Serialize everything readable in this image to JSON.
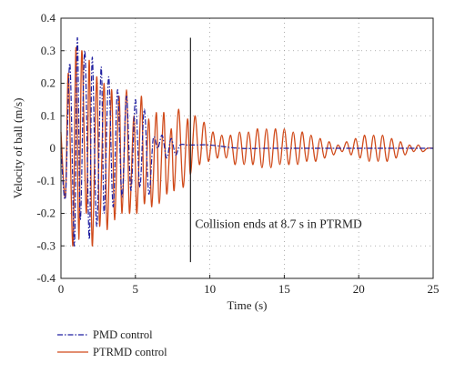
{
  "chart_data": {
    "type": "line",
    "title": "",
    "xlabel": "Time (s)",
    "ylabel": "Velocity of ball (m/s)",
    "xlim": [
      0,
      25
    ],
    "ylim": [
      -0.4,
      0.4
    ],
    "xticks": [
      0,
      5,
      10,
      15,
      20,
      25
    ],
    "yticks": [
      -0.4,
      -0.3,
      -0.2,
      -0.1,
      0,
      0.1,
      0.2,
      0.3,
      0.4
    ],
    "grid": "dotted",
    "legend_placement": "bottom-left, below plot",
    "annotation": {
      "text": "Collision ends at 8.7 s in PTRMD",
      "vline_x": 8.7,
      "vline_range": [
        -0.35,
        0.34
      ]
    },
    "series": [
      {
        "name": "PMD control",
        "style": "dash-dot",
        "color": "#1f1fa0",
        "x": [
          0,
          0.3,
          0.6,
          0.9,
          1.1,
          1.3,
          1.6,
          1.9,
          2.1,
          2.4,
          2.7,
          2.9,
          3.2,
          3.5,
          3.8,
          4.1,
          4.4,
          4.7,
          5.0,
          5.3,
          5.6,
          5.9,
          6.2,
          6.5,
          6.8,
          7.1,
          7.4,
          7.7,
          8.0,
          8.5,
          9.0,
          10,
          12,
          14,
          16,
          18,
          20,
          22,
          25
        ],
        "y": [
          0,
          -0.15,
          0.26,
          -0.3,
          0.34,
          -0.22,
          0.3,
          -0.28,
          0.28,
          -0.24,
          0.25,
          -0.2,
          0.22,
          -0.18,
          0.18,
          -0.15,
          0.16,
          -0.13,
          0.15,
          -0.12,
          0.12,
          -0.14,
          0.03,
          0.0,
          0.04,
          -0.03,
          0.03,
          -0.02,
          0.01,
          0.01,
          0.01,
          0.01,
          0.0,
          0.0,
          0.0,
          0.0,
          0.0,
          0.0,
          0.0
        ]
      },
      {
        "name": "PTRMD control",
        "style": "solid",
        "color": "#d04a1a",
        "x": [
          0,
          0.3,
          0.5,
          0.8,
          1.0,
          1.2,
          1.4,
          1.7,
          1.9,
          2.1,
          2.4,
          2.6,
          2.9,
          3.1,
          3.4,
          3.6,
          3.9,
          4.1,
          4.4,
          4.6,
          4.9,
          5.1,
          5.4,
          5.6,
          5.9,
          6.1,
          6.4,
          6.6,
          6.9,
          7.1,
          7.4,
          7.6,
          7.9,
          8.2,
          8.5,
          8.7,
          9.0,
          9.3,
          9.6,
          9.9,
          10.2,
          10.5,
          10.8,
          11.1,
          11.4,
          11.7,
          12.0,
          12.3,
          12.6,
          12.9,
          13.2,
          13.5,
          13.8,
          14.1,
          14.4,
          14.7,
          15.0,
          15.3,
          15.6,
          15.9,
          16.2,
          16.5,
          16.8,
          17.1,
          17.4,
          17.7,
          18.0,
          18.3,
          18.6,
          18.9,
          19.2,
          19.5,
          19.8,
          20.1,
          20.4,
          20.7,
          21.0,
          21.3,
          21.6,
          21.9,
          22.2,
          22.5,
          22.8,
          23.1,
          23.4,
          23.7,
          24.0,
          24.3,
          24.6,
          25.0
        ],
        "y": [
          0.05,
          -0.15,
          0.23,
          -0.3,
          0.31,
          -0.28,
          0.3,
          -0.2,
          0.27,
          -0.3,
          0.22,
          -0.24,
          0.2,
          -0.25,
          0.18,
          -0.22,
          0.16,
          -0.2,
          0.18,
          -0.2,
          0.1,
          -0.2,
          0.16,
          -0.17,
          0.09,
          -0.18,
          0.11,
          -0.17,
          0.11,
          -0.14,
          0.06,
          -0.13,
          0.12,
          -0.12,
          0.09,
          -0.08,
          0.1,
          -0.05,
          0.08,
          -0.04,
          0.05,
          -0.03,
          0.04,
          -0.03,
          0.04,
          -0.05,
          0.05,
          -0.05,
          0.05,
          -0.05,
          0.06,
          -0.06,
          0.06,
          -0.06,
          0.06,
          -0.05,
          0.06,
          -0.05,
          0.05,
          -0.05,
          0.05,
          -0.04,
          0.04,
          -0.04,
          0.03,
          -0.03,
          0.02,
          -0.02,
          0.01,
          -0.01,
          0.02,
          -0.02,
          0.03,
          -0.03,
          0.04,
          -0.04,
          0.04,
          -0.04,
          0.04,
          -0.04,
          0.03,
          -0.03,
          0.02,
          -0.02,
          0.01,
          -0.01,
          0.01,
          -0.01,
          0.0,
          0.0
        ]
      }
    ]
  }
}
